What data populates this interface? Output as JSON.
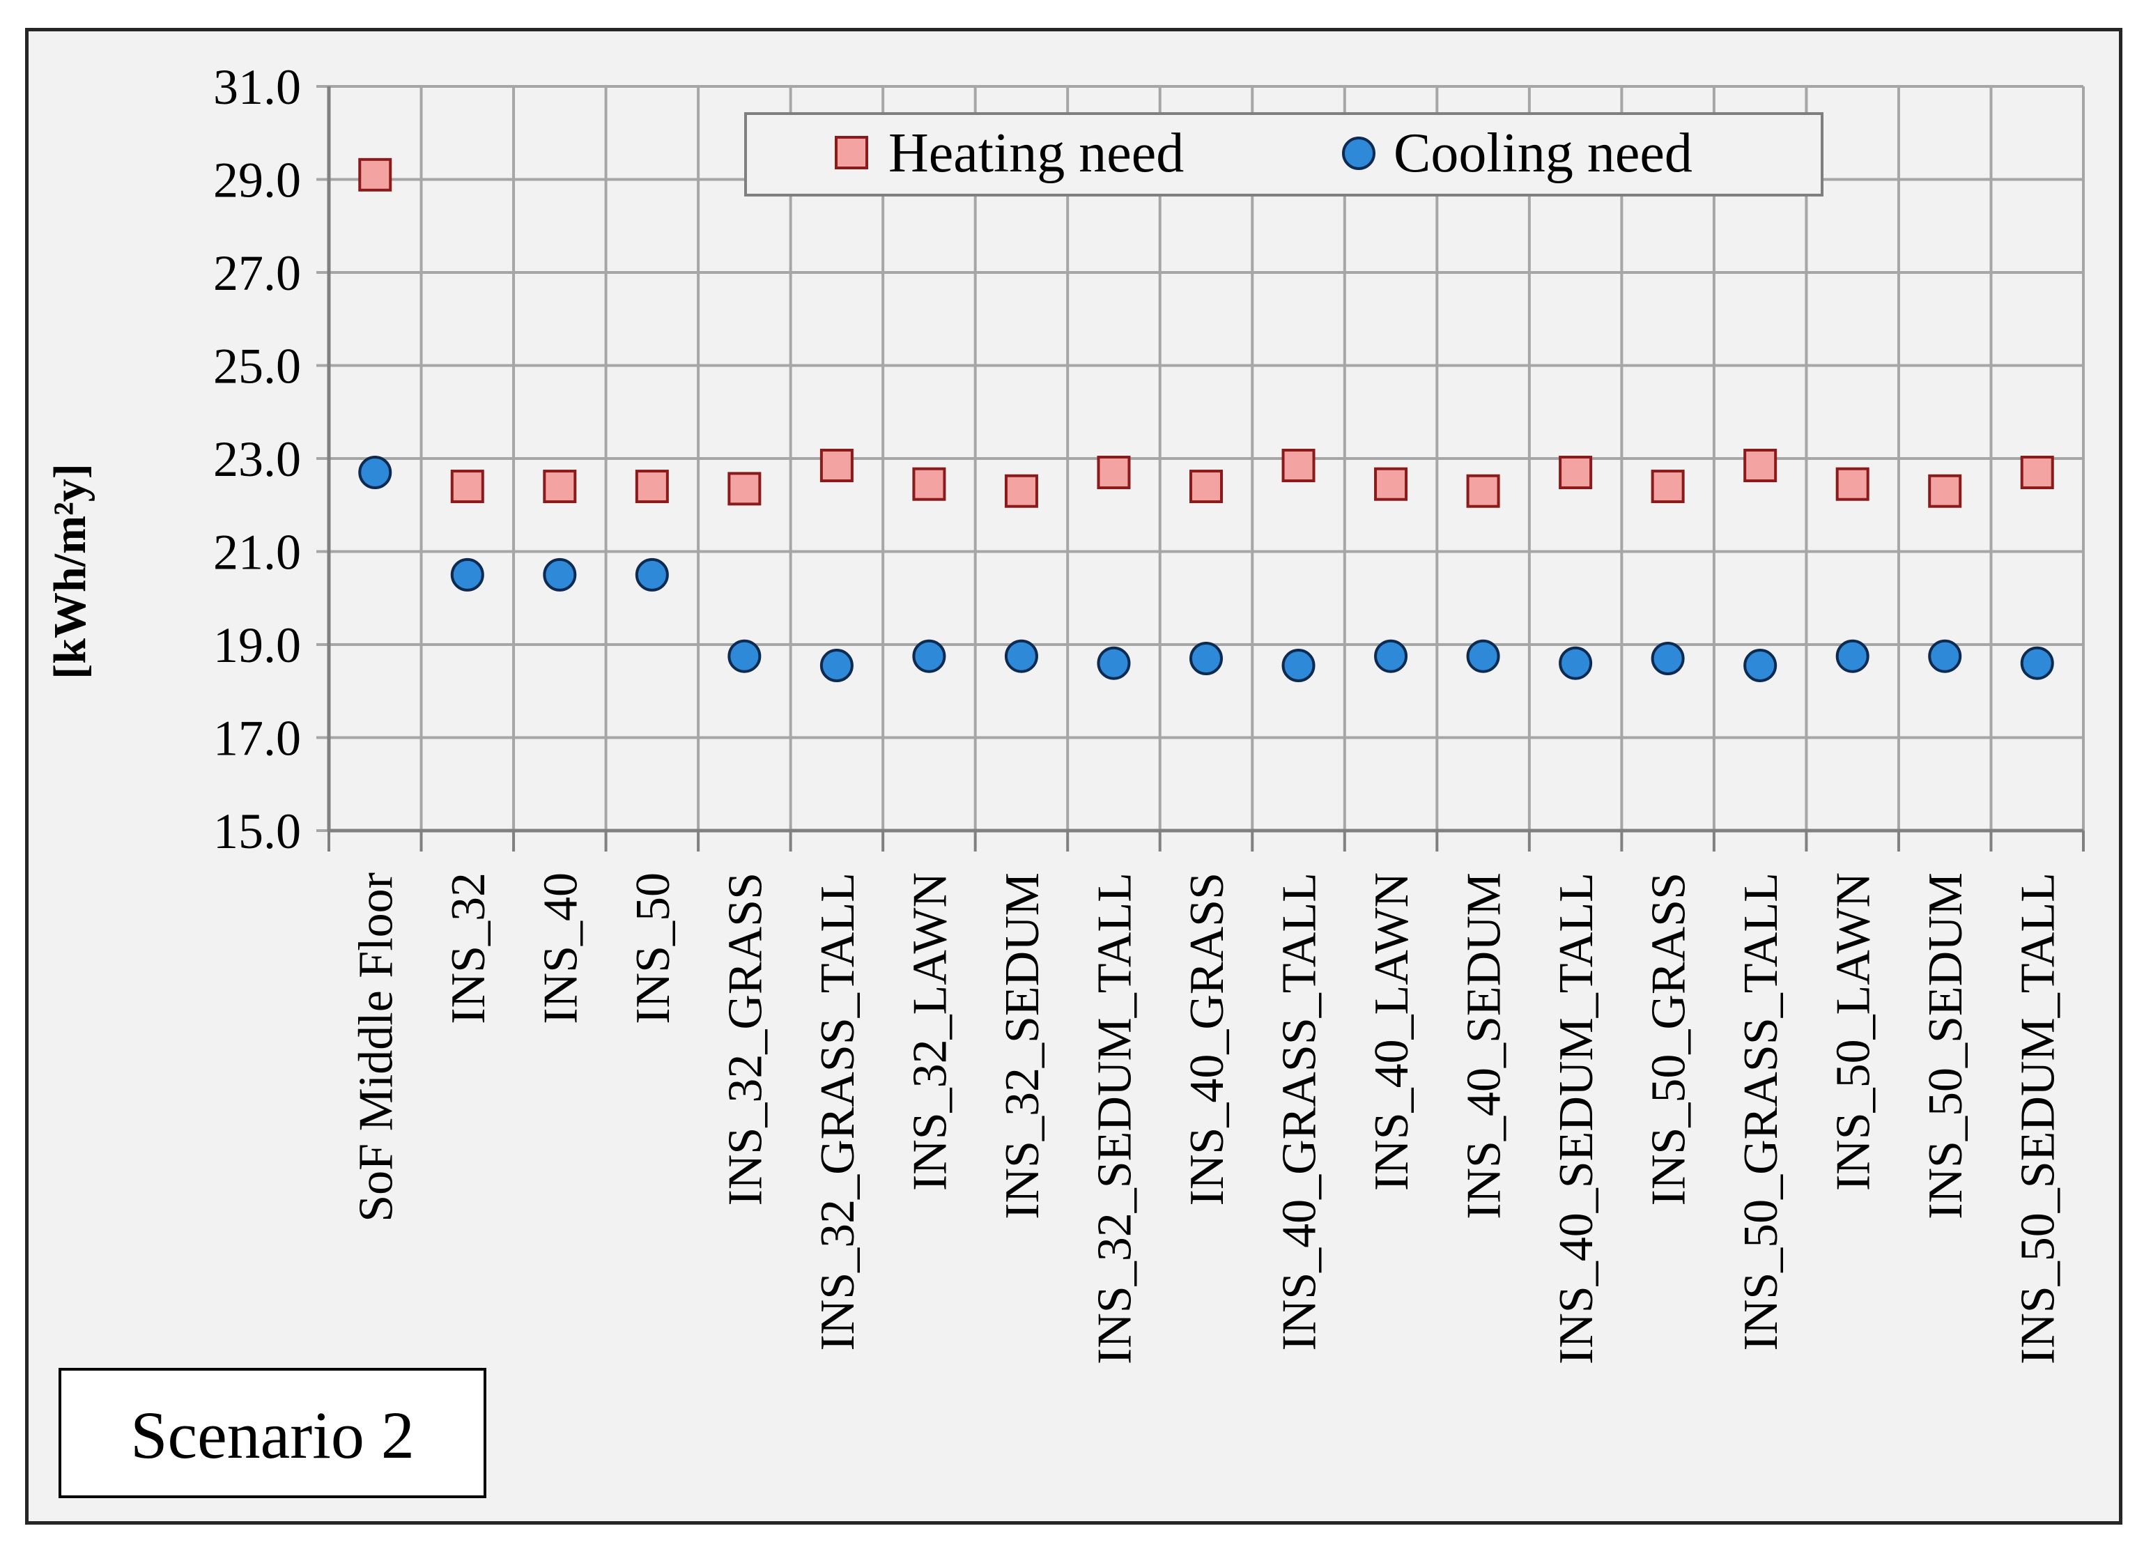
{
  "chart_data": {
    "type": "scatter",
    "title": "",
    "xlabel": "",
    "ylabel": "[kWh/m²y]",
    "ylim": [
      15.0,
      31.0
    ],
    "ytick_step": 2.0,
    "yticks": [
      "15.0",
      "17.0",
      "19.0",
      "21.0",
      "23.0",
      "25.0",
      "27.0",
      "29.0",
      "31.0"
    ],
    "grid": true,
    "legend_position": "top-center",
    "categories": [
      "SoF Middle Floor",
      "INS_32",
      "INS_40",
      "INS_50",
      "INS_32_GRASS",
      "INS_32_GRASS_TALL",
      "INS_32_LAWN",
      "INS_32_SEDUM",
      "INS_32_SEDUM_TALL",
      "INS_40_GRASS",
      "INS_40_GRASS_TALL",
      "INS_40_LAWN",
      "INS_40_SEDUM",
      "INS_40_SEDUM_TALL",
      "INS_50_GRASS",
      "INS_50_GRASS_TALL",
      "INS_50_LAWN",
      "INS_50_SEDUM",
      "INS_50_SEDUM_TALL"
    ],
    "series": [
      {
        "name": "Heating need",
        "marker": "square",
        "color": "#f4a3a3",
        "edge_color": "#8b1a1a",
        "values": [
          29.1,
          22.4,
          22.4,
          22.4,
          22.35,
          22.85,
          22.45,
          22.3,
          22.7,
          22.4,
          22.85,
          22.45,
          22.3,
          22.7,
          22.4,
          22.85,
          22.45,
          22.3,
          22.7
        ]
      },
      {
        "name": "Cooling need",
        "marker": "circle",
        "color": "#2e8ad8",
        "edge_color": "#0d2a50",
        "values": [
          22.7,
          20.5,
          20.5,
          20.5,
          18.75,
          18.55,
          18.75,
          18.75,
          18.6,
          18.7,
          18.55,
          18.75,
          18.75,
          18.6,
          18.7,
          18.55,
          18.75,
          18.75,
          18.6
        ]
      }
    ],
    "annotations": [
      "Scenario 2"
    ]
  },
  "colors": {
    "background": "#f2f2f2",
    "grid": "#a6a6a6",
    "axis": "#808080"
  }
}
